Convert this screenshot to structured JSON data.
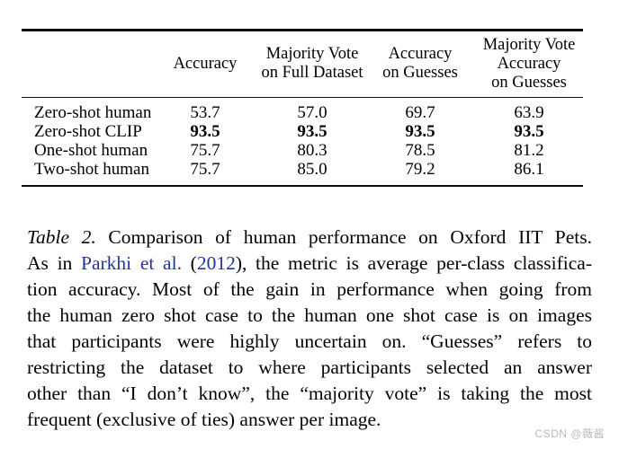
{
  "table": {
    "columns": [
      "",
      "Accuracy",
      "Majority Vote\non Full Dataset",
      "Accuracy\non Guesses",
      "Majority Vote\nAccuracy\non Guesses"
    ],
    "rows": [
      {
        "label": "Zero-shot human",
        "values": [
          "53.7",
          "57.0",
          "69.7",
          "63.9"
        ],
        "bold": false
      },
      {
        "label": "Zero-shot CLIP",
        "values": [
          "93.5",
          "93.5",
          "93.5",
          "93.5"
        ],
        "bold": true
      },
      {
        "label": "One-shot human",
        "values": [
          "75.7",
          "80.3",
          "78.5",
          "81.2"
        ],
        "bold": false
      },
      {
        "label": "Two-shot human",
        "values": [
          "75.7",
          "85.0",
          "79.2",
          "86.1"
        ],
        "bold": false
      }
    ]
  },
  "caption": {
    "lines": [
      {
        "last": false,
        "segments": [
          {
            "text": "Table 2.",
            "style": "italic"
          },
          {
            "text": " Comparison of human performance on Oxford IIT Pets.",
            "style": "plain"
          }
        ]
      },
      {
        "last": false,
        "segments": [
          {
            "text": "As in ",
            "style": "plain"
          },
          {
            "text": "Parkhi et al.",
            "style": "link"
          },
          {
            "text": " (",
            "style": "plain"
          },
          {
            "text": "2012",
            "style": "link"
          },
          {
            "text": "), the metric is average per-class classifica-",
            "style": "plain"
          }
        ]
      },
      {
        "last": false,
        "segments": [
          {
            "text": "tion accuracy. Most of the gain in performance when going from",
            "style": "plain"
          }
        ]
      },
      {
        "last": false,
        "segments": [
          {
            "text": "the human zero shot case to the human one shot case is on images",
            "style": "plain"
          }
        ]
      },
      {
        "last": false,
        "segments": [
          {
            "text": "that participants were highly uncertain on. “Guesses” refers to",
            "style": "plain"
          }
        ]
      },
      {
        "last": false,
        "segments": [
          {
            "text": "restricting the dataset to where participants selected an answer",
            "style": "plain"
          }
        ]
      },
      {
        "last": false,
        "segments": [
          {
            "text": "other than “I don’t know”, the “majority vote” is taking the most",
            "style": "plain"
          }
        ]
      },
      {
        "last": true,
        "segments": [
          {
            "text": "frequent (exclusive of ties) answer per image.",
            "style": "plain"
          }
        ]
      }
    ]
  },
  "watermark": "CSDN @薇酱",
  "colors": {
    "text": "#000000",
    "link": "#23359d",
    "rule": "#0d0d0d",
    "watermark": "#b9b9b9"
  }
}
